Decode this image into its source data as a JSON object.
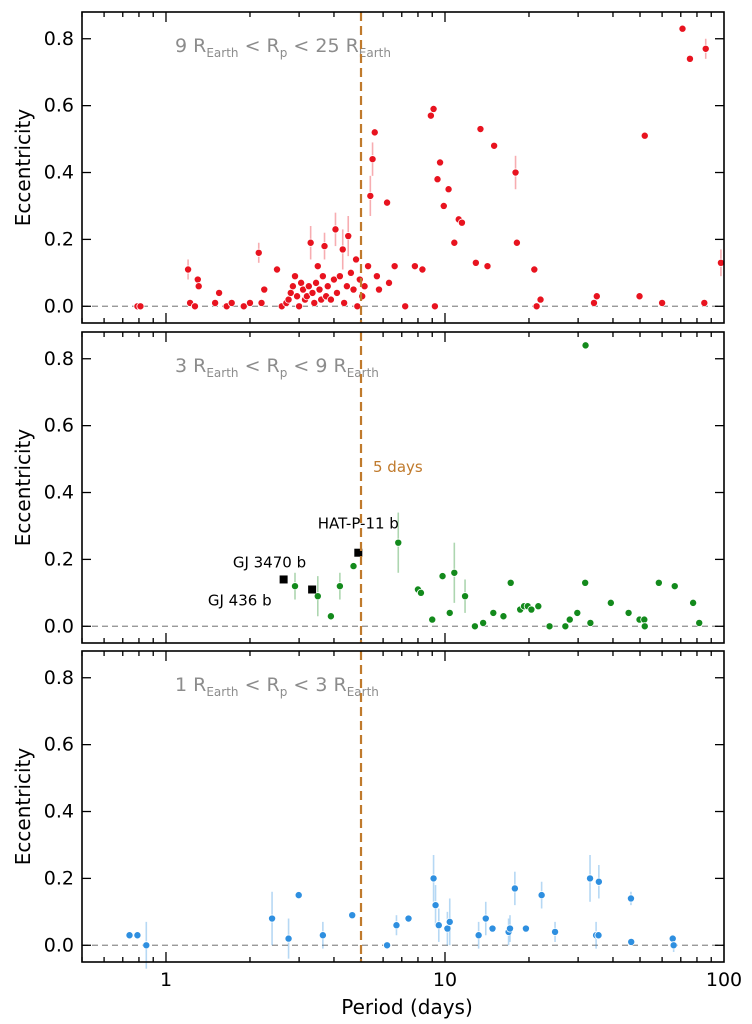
{
  "chart_data": {
    "type": "scatter",
    "xlabel": "Period (days)",
    "ylabel": "Eccentricity",
    "xscale": "log",
    "xlim": [
      0.5,
      100
    ],
    "ylim": [
      -0.05,
      0.88
    ],
    "xticks": [
      {
        "v": 1,
        "label": "1"
      },
      {
        "v": 10,
        "label": "10"
      },
      {
        "v": 100,
        "label": "100"
      }
    ],
    "yticks": [
      {
        "v": 0.0,
        "label": "0.0"
      },
      {
        "v": 0.2,
        "label": "0.2"
      },
      {
        "v": 0.4,
        "label": "0.4"
      },
      {
        "v": 0.6,
        "label": "0.6"
      },
      {
        "v": 0.8,
        "label": "0.8"
      }
    ],
    "vline": {
      "x": 5,
      "label": "5 days",
      "color": "#c07a2c"
    },
    "zero_line_color": "#8c8c8c",
    "panels": [
      {
        "range_label": {
          "pre": "9 R",
          "sub1": "Earth",
          "mid": " < R",
          "sub2": "p",
          "post": " < 25 R",
          "sub3": "Earth"
        },
        "color": "#e8131f",
        "show_xticklabels": false,
        "points": [
          {
            "x": 0.79,
            "y": 0.0
          },
          {
            "x": 0.81,
            "y": 0.0
          },
          {
            "x": 1.2,
            "y": 0.11,
            "e": 0.03
          },
          {
            "x": 1.22,
            "y": 0.01
          },
          {
            "x": 1.27,
            "y": 0.0
          },
          {
            "x": 1.3,
            "y": 0.08
          },
          {
            "x": 1.31,
            "y": 0.06
          },
          {
            "x": 1.5,
            "y": 0.01
          },
          {
            "x": 1.55,
            "y": 0.04
          },
          {
            "x": 1.65,
            "y": 0.0
          },
          {
            "x": 1.72,
            "y": 0.01
          },
          {
            "x": 1.9,
            "y": 0.0
          },
          {
            "x": 2.0,
            "y": 0.01
          },
          {
            "x": 2.15,
            "y": 0.16,
            "e": 0.03
          },
          {
            "x": 2.2,
            "y": 0.01
          },
          {
            "x": 2.25,
            "y": 0.05
          },
          {
            "x": 2.5,
            "y": 0.11
          },
          {
            "x": 2.6,
            "y": 0.0
          },
          {
            "x": 2.7,
            "y": 0.01
          },
          {
            "x": 2.75,
            "y": 0.02
          },
          {
            "x": 2.8,
            "y": 0.04
          },
          {
            "x": 2.85,
            "y": 0.06
          },
          {
            "x": 2.9,
            "y": 0.09
          },
          {
            "x": 2.95,
            "y": 0.03
          },
          {
            "x": 3.0,
            "y": 0.0
          },
          {
            "x": 3.05,
            "y": 0.07
          },
          {
            "x": 3.1,
            "y": 0.05
          },
          {
            "x": 3.15,
            "y": 0.02
          },
          {
            "x": 3.2,
            "y": 0.03
          },
          {
            "x": 3.25,
            "y": 0.06
          },
          {
            "x": 3.3,
            "y": 0.19,
            "e": 0.05
          },
          {
            "x": 3.35,
            "y": 0.04
          },
          {
            "x": 3.4,
            "y": 0.01
          },
          {
            "x": 3.45,
            "y": 0.07
          },
          {
            "x": 3.5,
            "y": 0.12
          },
          {
            "x": 3.55,
            "y": 0.05
          },
          {
            "x": 3.6,
            "y": 0.02
          },
          {
            "x": 3.65,
            "y": 0.09
          },
          {
            "x": 3.7,
            "y": 0.18,
            "e": 0.04
          },
          {
            "x": 3.75,
            "y": 0.03
          },
          {
            "x": 3.8,
            "y": 0.06
          },
          {
            "x": 3.9,
            "y": 0.02
          },
          {
            "x": 4.0,
            "y": 0.08
          },
          {
            "x": 4.05,
            "y": 0.23,
            "e": 0.05
          },
          {
            "x": 4.1,
            "y": 0.04
          },
          {
            "x": 4.2,
            "y": 0.09
          },
          {
            "x": 4.3,
            "y": 0.17,
            "e": 0.06
          },
          {
            "x": 4.35,
            "y": 0.01
          },
          {
            "x": 4.45,
            "y": 0.06
          },
          {
            "x": 4.5,
            "y": 0.21,
            "e": 0.06
          },
          {
            "x": 4.6,
            "y": 0.1
          },
          {
            "x": 4.7,
            "y": 0.05
          },
          {
            "x": 4.8,
            "y": 0.14
          },
          {
            "x": 4.85,
            "y": 0.0
          },
          {
            "x": 4.95,
            "y": 0.08
          },
          {
            "x": 5.05,
            "y": 0.03
          },
          {
            "x": 5.15,
            "y": 0.06
          },
          {
            "x": 5.3,
            "y": 0.12
          },
          {
            "x": 5.4,
            "y": 0.33,
            "e": 0.06
          },
          {
            "x": 5.5,
            "y": 0.44,
            "e": 0.05
          },
          {
            "x": 5.6,
            "y": 0.52
          },
          {
            "x": 5.7,
            "y": 0.09
          },
          {
            "x": 5.8,
            "y": 0.05
          },
          {
            "x": 6.2,
            "y": 0.31
          },
          {
            "x": 6.3,
            "y": 0.07
          },
          {
            "x": 6.6,
            "y": 0.12
          },
          {
            "x": 7.2,
            "y": 0.0
          },
          {
            "x": 7.8,
            "y": 0.12
          },
          {
            "x": 8.3,
            "y": 0.11
          },
          {
            "x": 8.9,
            "y": 0.57
          },
          {
            "x": 9.1,
            "y": 0.59
          },
          {
            "x": 9.2,
            "y": 0.0
          },
          {
            "x": 9.4,
            "y": 0.38
          },
          {
            "x": 9.6,
            "y": 0.43
          },
          {
            "x": 9.9,
            "y": 0.3
          },
          {
            "x": 10.3,
            "y": 0.35
          },
          {
            "x": 10.8,
            "y": 0.19
          },
          {
            "x": 11.2,
            "y": 0.26
          },
          {
            "x": 11.5,
            "y": 0.25
          },
          {
            "x": 12.9,
            "y": 0.13
          },
          {
            "x": 13.4,
            "y": 0.53
          },
          {
            "x": 14.2,
            "y": 0.12
          },
          {
            "x": 15.0,
            "y": 0.48
          },
          {
            "x": 17.9,
            "y": 0.4,
            "e": 0.05
          },
          {
            "x": 18.1,
            "y": 0.19
          },
          {
            "x": 20.9,
            "y": 0.11
          },
          {
            "x": 21.3,
            "y": 0.0
          },
          {
            "x": 22.0,
            "y": 0.02
          },
          {
            "x": 34.2,
            "y": 0.01
          },
          {
            "x": 35.0,
            "y": 0.03
          },
          {
            "x": 49.8,
            "y": 0.03
          },
          {
            "x": 52.0,
            "y": 0.51
          },
          {
            "x": 60.0,
            "y": 0.01
          },
          {
            "x": 71.0,
            "y": 0.83
          },
          {
            "x": 75.5,
            "y": 0.74
          },
          {
            "x": 85.0,
            "y": 0.01
          },
          {
            "x": 86.0,
            "y": 0.77,
            "e": 0.03
          },
          {
            "x": 97.5,
            "y": 0.13,
            "e": 0.04
          }
        ],
        "annotations": []
      },
      {
        "range_label": {
          "pre": "3 R",
          "sub1": "Earth",
          "mid": " < R",
          "sub2": "p",
          "post": " < 9 R",
          "sub3": "Earth"
        },
        "color": "#138a1c",
        "show_xticklabels": false,
        "show_vline_label": true,
        "points": [
          {
            "x": 2.9,
            "y": 0.12,
            "e": 0.04
          },
          {
            "x": 3.5,
            "y": 0.09,
            "e": 0.06
          },
          {
            "x": 3.9,
            "y": 0.03
          },
          {
            "x": 4.2,
            "y": 0.12,
            "e": 0.04
          },
          {
            "x": 4.7,
            "y": 0.18
          },
          {
            "x": 6.8,
            "y": 0.25,
            "e": 0.09
          },
          {
            "x": 8.0,
            "y": 0.11
          },
          {
            "x": 8.2,
            "y": 0.1
          },
          {
            "x": 9.0,
            "y": 0.02
          },
          {
            "x": 9.8,
            "y": 0.15
          },
          {
            "x": 10.4,
            "y": 0.04
          },
          {
            "x": 10.8,
            "y": 0.16,
            "e": 0.09
          },
          {
            "x": 11.8,
            "y": 0.09,
            "e": 0.05
          },
          {
            "x": 12.8,
            "y": 0.0
          },
          {
            "x": 13.7,
            "y": 0.01
          },
          {
            "x": 14.9,
            "y": 0.04
          },
          {
            "x": 16.2,
            "y": 0.03
          },
          {
            "x": 17.2,
            "y": 0.13
          },
          {
            "x": 18.6,
            "y": 0.05
          },
          {
            "x": 19.2,
            "y": 0.06
          },
          {
            "x": 19.8,
            "y": 0.06
          },
          {
            "x": 20.4,
            "y": 0.05
          },
          {
            "x": 21.6,
            "y": 0.06
          },
          {
            "x": 23.7,
            "y": 0.0
          },
          {
            "x": 27.0,
            "y": 0.0
          },
          {
            "x": 28.0,
            "y": 0.02
          },
          {
            "x": 29.8,
            "y": 0.04
          },
          {
            "x": 31.8,
            "y": 0.13
          },
          {
            "x": 31.9,
            "y": 0.84
          },
          {
            "x": 33.2,
            "y": 0.01
          },
          {
            "x": 39.3,
            "y": 0.07
          },
          {
            "x": 45.5,
            "y": 0.04
          },
          {
            "x": 49.8,
            "y": 0.02
          },
          {
            "x": 51.8,
            "y": 0.02
          },
          {
            "x": 52.0,
            "y": 0.0
          },
          {
            "x": 58.4,
            "y": 0.13
          },
          {
            "x": 66.6,
            "y": 0.12
          },
          {
            "x": 77.5,
            "y": 0.07
          },
          {
            "x": 81.5,
            "y": 0.01
          }
        ],
        "annotations": [
          {
            "label": "GJ 436 b",
            "x": 2.64,
            "y": 0.14,
            "align": "end",
            "dx": -12,
            "dy": 26
          },
          {
            "label": "GJ 3470 b",
            "x": 3.34,
            "y": 0.11,
            "align": "end",
            "dx": -6,
            "dy": -22
          },
          {
            "label": "HAT-P-11 b",
            "x": 4.89,
            "y": 0.22,
            "align": "middle",
            "dx": 0,
            "dy": -24
          }
        ]
      },
      {
        "range_label": {
          "pre": "1 R",
          "sub1": "Earth",
          "mid": " < R",
          "sub2": "p",
          "post": " < 3 R",
          "sub3": "Earth"
        },
        "color": "#2e8fe0",
        "show_xticklabels": true,
        "points": [
          {
            "x": 0.74,
            "y": 0.03
          },
          {
            "x": 0.79,
            "y": 0.03
          },
          {
            "x": 0.85,
            "y": 0.0,
            "e": 0.07
          },
          {
            "x": 2.4,
            "y": 0.08,
            "e": 0.08
          },
          {
            "x": 2.75,
            "y": 0.02,
            "e": 0.06
          },
          {
            "x": 2.99,
            "y": 0.15
          },
          {
            "x": 3.65,
            "y": 0.03,
            "e": 0.04
          },
          {
            "x": 4.65,
            "y": 0.09
          },
          {
            "x": 6.2,
            "y": 0.0
          },
          {
            "x": 6.7,
            "y": 0.06,
            "e": 0.03
          },
          {
            "x": 7.4,
            "y": 0.08
          },
          {
            "x": 9.1,
            "y": 0.2,
            "e": 0.07
          },
          {
            "x": 9.25,
            "y": 0.12,
            "e": 0.06
          },
          {
            "x": 9.5,
            "y": 0.06,
            "e": 0.05
          },
          {
            "x": 10.2,
            "y": 0.05,
            "e": 0.05
          },
          {
            "x": 10.4,
            "y": 0.07,
            "e": 0.07
          },
          {
            "x": 13.2,
            "y": 0.03,
            "e": 0.04
          },
          {
            "x": 14.0,
            "y": 0.08,
            "e": 0.05
          },
          {
            "x": 14.8,
            "y": 0.05
          },
          {
            "x": 16.9,
            "y": 0.04,
            "e": 0.04
          },
          {
            "x": 17.1,
            "y": 0.05,
            "e": 0.04
          },
          {
            "x": 17.8,
            "y": 0.17,
            "e": 0.05
          },
          {
            "x": 19.5,
            "y": 0.05
          },
          {
            "x": 22.2,
            "y": 0.15,
            "e": 0.04
          },
          {
            "x": 24.8,
            "y": 0.04,
            "e": 0.03
          },
          {
            "x": 33.1,
            "y": 0.2,
            "e": 0.07
          },
          {
            "x": 34.8,
            "y": 0.03,
            "e": 0.04
          },
          {
            "x": 35.5,
            "y": 0.03
          },
          {
            "x": 35.6,
            "y": 0.19,
            "e": 0.05
          },
          {
            "x": 46.4,
            "y": 0.14,
            "e": 0.02
          },
          {
            "x": 46.5,
            "y": 0.01
          },
          {
            "x": 65.5,
            "y": 0.02
          },
          {
            "x": 66.0,
            "y": 0.0,
            "e": 0.02
          }
        ],
        "annotations": []
      }
    ],
    "special_points": [
      {
        "panel": 1,
        "x": 2.64,
        "y": 0.14,
        "color": "#000000"
      },
      {
        "panel": 1,
        "x": 3.34,
        "y": 0.11,
        "color": "#000000"
      },
      {
        "panel": 1,
        "x": 4.89,
        "y": 0.22,
        "color": "#000000"
      }
    ]
  }
}
